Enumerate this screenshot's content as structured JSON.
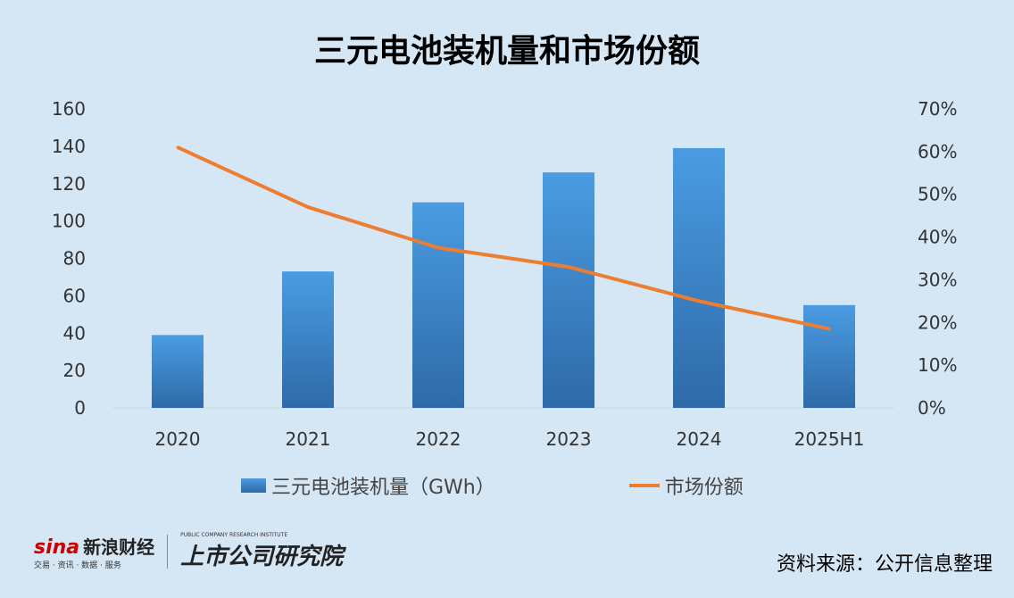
{
  "chart_data": {
    "type": "bar+line",
    "title": "三元电池装机量和市场份额",
    "categories": [
      "2020",
      "2021",
      "2022",
      "2023",
      "2024",
      "2025H1"
    ],
    "series": [
      {
        "name": "三元电池装机量（GWh）",
        "type": "bar",
        "axis": "left",
        "values": [
          39,
          73,
          110,
          126,
          139,
          55
        ],
        "color": "#3f8ad6"
      },
      {
        "name": "市场份额",
        "type": "line",
        "axis": "right",
        "values": [
          61,
          47,
          37.5,
          33,
          25,
          18.5
        ],
        "color": "#ed7d31"
      }
    ],
    "ylim": [
      0,
      160
    ],
    "yticks": [
      "0",
      "20",
      "40",
      "60",
      "80",
      "100",
      "120",
      "140",
      "160"
    ],
    "y2lim": [
      0,
      70
    ],
    "y2ticks": [
      "0%",
      "10%",
      "20%",
      "30%",
      "40%",
      "50%",
      "60%",
      "70%"
    ],
    "legend": "bottom"
  },
  "footer": {
    "brand": "sina",
    "brand_cn": "新浪财经",
    "brand_sub": "交易 · 资讯 · 数据 · 服务",
    "institute": "上市公司研究院",
    "institute_sub": "PUBLIC COMPANY RESEARCH INSTITUTE",
    "source": "资料来源：公开信息整理"
  }
}
